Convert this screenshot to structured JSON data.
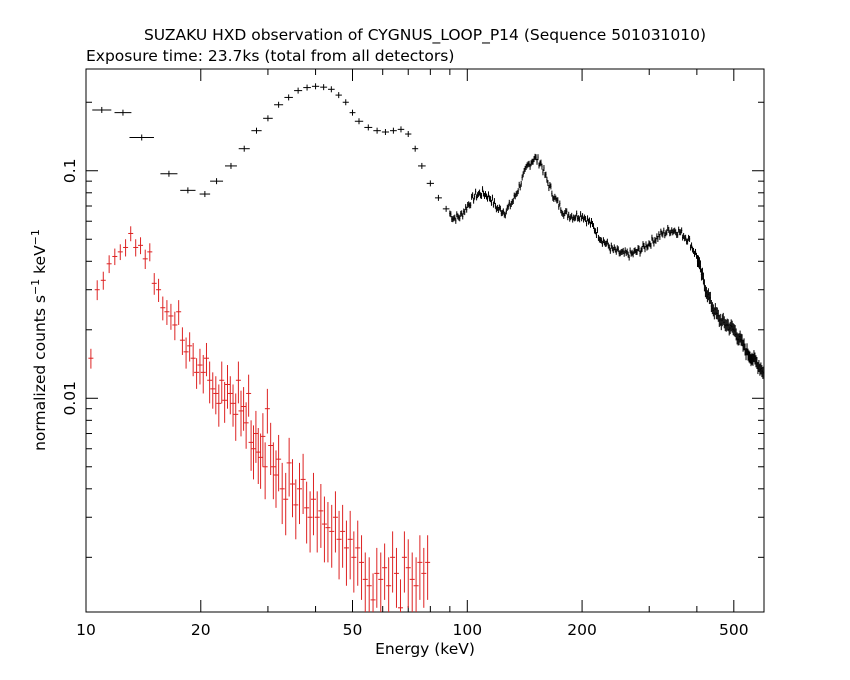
{
  "chart_data": {
    "type": "scatter",
    "title": "SUZAKU HXD observation of CYGNUS_LOOP_P14 (Sequence 501031010)",
    "subtitle": "Exposure time: 23.7ks (total from all detectors)",
    "xlabel": "Energy (keV)",
    "ylabel_main": "normalized counts s",
    "ylabel_exp1": "−1",
    "ylabel_mid": " keV",
    "ylabel_exp2": "−1",
    "x_scale": "log",
    "y_scale": "log",
    "xlim": [
      10,
      600
    ],
    "ylim": [
      0.00115,
      0.28
    ],
    "x_ticks": [
      10,
      20,
      50,
      100,
      200,
      500
    ],
    "x_tick_labels": [
      "10",
      "20",
      "50",
      "100",
      "200",
      "500"
    ],
    "y_ticks": [
      0.1,
      0.01
    ],
    "y_tick_labels": [
      "0.1",
      "0.01"
    ],
    "grid": false,
    "series": [
      {
        "detector": "black",
        "color": "#000000",
        "points": [
          [
            11.0,
            0.185
          ],
          [
            12.5,
            0.18
          ],
          [
            14.0,
            0.14
          ],
          [
            16.5,
            0.097
          ],
          [
            18.5,
            0.082
          ],
          [
            20.5,
            0.079
          ],
          [
            22.0,
            0.09
          ],
          [
            24.0,
            0.105
          ],
          [
            26.0,
            0.125
          ],
          [
            28.0,
            0.15
          ],
          [
            30.0,
            0.17
          ],
          [
            32.0,
            0.195
          ],
          [
            34.0,
            0.21
          ],
          [
            36.0,
            0.225
          ],
          [
            38.0,
            0.232
          ],
          [
            40.0,
            0.235
          ],
          [
            42.0,
            0.233
          ],
          [
            44.0,
            0.228
          ],
          [
            46.0,
            0.215
          ],
          [
            48.0,
            0.2
          ],
          [
            50.0,
            0.18
          ],
          [
            52.0,
            0.165
          ],
          [
            55.0,
            0.155
          ],
          [
            58.0,
            0.15
          ],
          [
            61.0,
            0.148
          ],
          [
            64.0,
            0.15
          ],
          [
            67.0,
            0.152
          ],
          [
            70.0,
            0.145
          ],
          [
            73.0,
            0.125
          ],
          [
            76.0,
            0.105
          ],
          [
            80.0,
            0.088
          ],
          [
            84.0,
            0.076
          ],
          [
            88.0,
            0.068
          ],
          [
            92.0,
            0.062
          ],
          [
            96.0,
            0.063
          ],
          [
            100.0,
            0.07
          ],
          [
            105.0,
            0.078
          ],
          [
            110.0,
            0.08
          ],
          [
            115.0,
            0.076
          ],
          [
            120.0,
            0.068
          ],
          [
            126.0,
            0.066
          ],
          [
            132.0,
            0.074
          ],
          [
            138.0,
            0.088
          ],
          [
            144.0,
            0.105
          ],
          [
            150.0,
            0.114
          ],
          [
            156.0,
            0.108
          ],
          [
            162.0,
            0.09
          ],
          [
            170.0,
            0.075
          ],
          [
            180.0,
            0.065
          ],
          [
            190.0,
            0.063
          ],
          [
            200.0,
            0.064
          ],
          [
            212.0,
            0.058
          ],
          [
            225.0,
            0.05
          ],
          [
            240.0,
            0.045
          ],
          [
            255.0,
            0.043
          ],
          [
            270.0,
            0.043
          ],
          [
            285.0,
            0.045
          ],
          [
            300.0,
            0.048
          ],
          [
            320.0,
            0.052
          ],
          [
            340.0,
            0.055
          ],
          [
            360.0,
            0.054
          ],
          [
            380.0,
            0.05
          ],
          [
            400.0,
            0.042
          ],
          [
            420.0,
            0.031
          ],
          [
            440.0,
            0.025
          ],
          [
            460.0,
            0.022
          ],
          [
            480.0,
            0.021
          ],
          [
            500.0,
            0.02
          ],
          [
            520.0,
            0.018
          ],
          [
            540.0,
            0.016
          ],
          [
            560.0,
            0.015
          ],
          [
            580.0,
            0.014
          ],
          [
            600.0,
            0.013
          ]
        ]
      },
      {
        "detector": "red",
        "color": "#dd2222",
        "points": [
          [
            10.3,
            0.015,
            0.0015
          ],
          [
            10.7,
            0.03,
            0.003
          ],
          [
            11.1,
            0.033,
            0.003
          ],
          [
            11.5,
            0.039,
            0.0035
          ],
          [
            11.9,
            0.042,
            0.0035
          ],
          [
            12.3,
            0.044,
            0.0035
          ],
          [
            12.7,
            0.046,
            0.004
          ],
          [
            13.1,
            0.053,
            0.004
          ],
          [
            13.5,
            0.046,
            0.004
          ],
          [
            13.9,
            0.047,
            0.004
          ],
          [
            14.3,
            0.041,
            0.004
          ],
          [
            14.7,
            0.044,
            0.004
          ],
          [
            15.1,
            0.032,
            0.0035
          ],
          [
            15.5,
            0.03,
            0.0035
          ],
          [
            15.9,
            0.025,
            0.003
          ],
          [
            16.3,
            0.024,
            0.003
          ],
          [
            16.7,
            0.023,
            0.003
          ],
          [
            17.1,
            0.021,
            0.003
          ],
          [
            17.5,
            0.024,
            0.003
          ],
          [
            17.9,
            0.018,
            0.0025
          ],
          [
            18.3,
            0.016,
            0.0025
          ],
          [
            18.7,
            0.017,
            0.0025
          ],
          [
            19.1,
            0.015,
            0.0025
          ],
          [
            19.5,
            0.013,
            0.002
          ],
          [
            19.9,
            0.014,
            0.0025
          ],
          [
            20.3,
            0.013,
            0.0025
          ],
          [
            20.7,
            0.015,
            0.0025
          ],
          [
            21.1,
            0.012,
            0.0025
          ],
          [
            21.5,
            0.011,
            0.002
          ],
          [
            21.9,
            0.0105,
            0.002
          ],
          [
            22.3,
            0.0095,
            0.002
          ],
          [
            22.7,
            0.012,
            0.0025
          ],
          [
            23.1,
            0.0098,
            0.002
          ],
          [
            23.5,
            0.0115,
            0.0025
          ],
          [
            23.9,
            0.0105,
            0.002
          ],
          [
            24.3,
            0.0095,
            0.002
          ],
          [
            24.7,
            0.0085,
            0.002
          ],
          [
            25.1,
            0.012,
            0.0025
          ],
          [
            25.5,
            0.0088,
            0.002
          ],
          [
            25.9,
            0.0092,
            0.002
          ],
          [
            26.3,
            0.0078,
            0.0018
          ],
          [
            26.7,
            0.0105,
            0.0022
          ],
          [
            27.1,
            0.0064,
            0.0016
          ],
          [
            27.5,
            0.006,
            0.0016
          ],
          [
            27.9,
            0.007,
            0.0018
          ],
          [
            28.3,
            0.0058,
            0.0016
          ],
          [
            28.7,
            0.0055,
            0.0015
          ],
          [
            29.1,
            0.0068,
            0.0018
          ],
          [
            29.5,
            0.005,
            0.0014
          ],
          [
            29.9,
            0.009,
            0.002
          ],
          [
            30.5,
            0.0062,
            0.0016
          ],
          [
            31.0,
            0.005,
            0.0014
          ],
          [
            31.5,
            0.0046,
            0.0013
          ],
          [
            32.0,
            0.0054,
            0.0015
          ],
          [
            32.7,
            0.004,
            0.0012
          ],
          [
            33.4,
            0.0036,
            0.0011
          ],
          [
            34.1,
            0.0052,
            0.0015
          ],
          [
            34.8,
            0.0042,
            0.0012
          ],
          [
            35.5,
            0.0034,
            0.001
          ],
          [
            36.3,
            0.004,
            0.0012
          ],
          [
            37.1,
            0.0044,
            0.0013
          ],
          [
            37.9,
            0.0033,
            0.001
          ],
          [
            38.7,
            0.003,
            0.0009
          ],
          [
            39.5,
            0.0036,
            0.0011
          ],
          [
            40.4,
            0.003,
            0.0009
          ],
          [
            41.3,
            0.0032,
            0.001
          ],
          [
            42.2,
            0.0028,
            0.0009
          ],
          [
            43.1,
            0.0027,
            0.0008
          ],
          [
            44.1,
            0.0026,
            0.0008
          ],
          [
            45.1,
            0.003,
            0.0009
          ],
          [
            46.1,
            0.0024,
            0.0008
          ],
          [
            47.1,
            0.0026,
            0.0008
          ],
          [
            48.2,
            0.0022,
            0.0007
          ],
          [
            49.3,
            0.0024,
            0.0008
          ],
          [
            50.4,
            0.002,
            0.0006
          ],
          [
            51.6,
            0.0022,
            0.0007
          ],
          [
            52.8,
            0.0019,
            0.0006
          ],
          [
            54.0,
            0.0016,
            0.0005
          ],
          [
            55.3,
            0.0015,
            0.0005
          ],
          [
            56.6,
            0.0013,
            0.0004
          ],
          [
            57.9,
            0.0017,
            0.0005
          ],
          [
            59.3,
            0.0016,
            0.0005
          ],
          [
            60.7,
            0.0018,
            0.0005
          ],
          [
            62.2,
            0.0015,
            0.0005
          ],
          [
            63.7,
            0.002,
            0.0006
          ],
          [
            65.2,
            0.0017,
            0.0005
          ],
          [
            66.8,
            0.0012,
            0.0004
          ],
          [
            68.4,
            0.002,
            0.0006
          ],
          [
            70.0,
            0.0018,
            0.0006
          ],
          [
            71.7,
            0.0016,
            0.0005
          ],
          [
            73.4,
            0.0015,
            0.0005
          ],
          [
            75.1,
            0.0019,
            0.0006
          ],
          [
            76.9,
            0.0017,
            0.0005
          ],
          [
            78.7,
            0.0019,
            0.0006
          ]
        ]
      }
    ]
  }
}
